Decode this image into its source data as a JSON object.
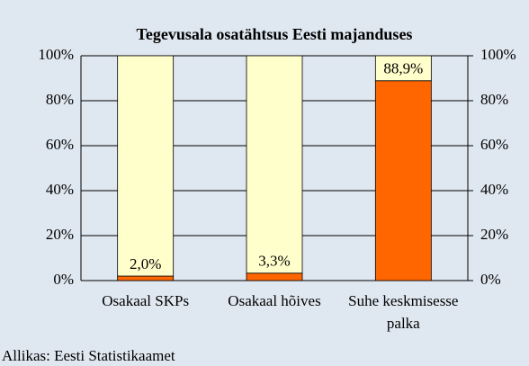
{
  "chart_data": {
    "type": "bar",
    "stacked": true,
    "title": "Tegevusala osatähtsus Eesti majanduses",
    "source": "Allikas: Eesti Statistikaamet",
    "categories": [
      "Osakaal SKPs",
      "Osakaal hõives",
      "Suhe keskmisesse palka"
    ],
    "series": [
      {
        "color": "#ff6600",
        "values": [
          2.0,
          3.3,
          88.9
        ],
        "value_labels": [
          "2,0%",
          "3,3%",
          "88,9%"
        ]
      },
      {
        "color": "#ffffcc",
        "values": [
          98.0,
          96.7,
          11.1
        ]
      }
    ],
    "ylim": [
      0,
      100
    ],
    "yticks": [
      {
        "value": 0,
        "label": "0%"
      },
      {
        "value": 20,
        "label": "20%"
      },
      {
        "value": 40,
        "label": "40%"
      },
      {
        "value": 60,
        "label": "60%"
      },
      {
        "value": 80,
        "label": "80%"
      },
      {
        "value": 100,
        "label": "100%"
      }
    ],
    "y2lim": [
      0,
      100
    ],
    "y2ticks": [
      {
        "value": 0,
        "label": "0%"
      },
      {
        "value": 20,
        "label": "20%"
      },
      {
        "value": 40,
        "label": "40%"
      },
      {
        "value": 60,
        "label": "60%"
      },
      {
        "value": 80,
        "label": "80%"
      },
      {
        "value": 100,
        "label": "100%"
      }
    ],
    "grid": true
  }
}
